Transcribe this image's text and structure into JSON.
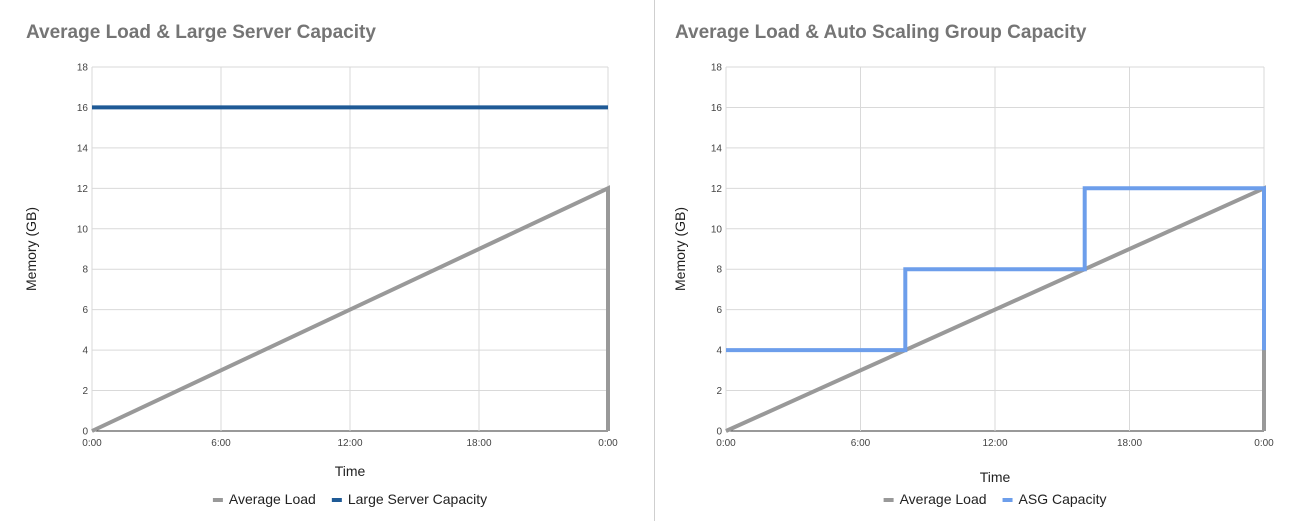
{
  "chart_data": [
    {
      "type": "line",
      "title": "Average Load & Large Server Capacity",
      "xlabel": "Time",
      "ylabel": "Memory (GB)",
      "x_ticks": [
        "0:00",
        "6:00",
        "12:00",
        "18:00",
        "0:00"
      ],
      "x": [
        0,
        24
      ],
      "y_ticks": [
        "0",
        "2",
        "4",
        "6",
        "8",
        "10",
        "12",
        "14",
        "16",
        "18"
      ],
      "ylim": [
        0,
        18
      ],
      "xlim": [
        0,
        24
      ],
      "grid": true,
      "legend_position": "bottom",
      "series": [
        {
          "name": "Average Load",
          "color": "#999999",
          "points": [
            [
              0,
              0
            ],
            [
              24,
              12
            ],
            [
              24,
              0
            ]
          ]
        },
        {
          "name": "Large Server Capacity",
          "color": "#1f5a96",
          "points": [
            [
              0,
              16
            ],
            [
              24,
              16
            ]
          ]
        }
      ]
    },
    {
      "type": "line",
      "title": "Average Load & Auto Scaling Group Capacity",
      "xlabel": "Time",
      "ylabel": "Memory (GB)",
      "x_ticks": [
        "0:00",
        "6:00",
        "12:00",
        "18:00",
        "0:00"
      ],
      "x": [
        0,
        24
      ],
      "y_ticks": [
        "0",
        "2",
        "4",
        "6",
        "8",
        "10",
        "12",
        "14",
        "16",
        "18"
      ],
      "ylim": [
        0,
        18
      ],
      "xlim": [
        0,
        24
      ],
      "grid": true,
      "legend_position": "bottom",
      "series": [
        {
          "name": "Average Load",
          "color": "#999999",
          "points": [
            [
              0,
              0
            ],
            [
              24,
              12
            ],
            [
              24,
              0
            ]
          ]
        },
        {
          "name": "ASG Capacity",
          "color": "#6d9eeb",
          "points": [
            [
              0,
              4
            ],
            [
              8,
              4
            ],
            [
              8,
              8
            ],
            [
              16,
              8
            ],
            [
              16,
              12
            ],
            [
              24,
              12
            ],
            [
              24,
              4
            ]
          ]
        }
      ]
    }
  ]
}
